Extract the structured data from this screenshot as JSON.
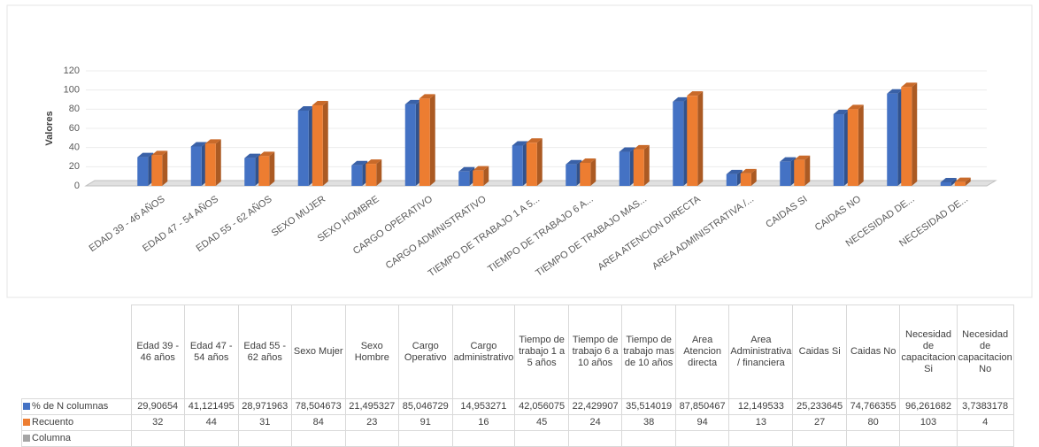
{
  "chart_data": {
    "type": "bar3d",
    "y_label": "Valores",
    "categories": [
      "EDAD 39 - 46 AÑOS",
      "EDAD 47 - 54 AÑOS",
      "EDAD 55 - 62 AÑOS",
      "SEXO MUJER",
      "SEXO HOMBRE",
      "CARGO OPERATIVO",
      "CARGO ADMINISTRATIVO",
      "TIEMPO DE TRABAJO 1 A 5...",
      "TIEMPO DE TRABAJO 6 A...",
      "TIEMPO DE TRABAJO MAS...",
      "AREA ATENCION DIRECTA",
      "AREA ADMINISTRATIVA /...",
      "CAIDAS SI",
      "CAIDAS NO",
      "NECESIDAD DE...",
      "NECESIDAD DE..."
    ],
    "table_headers": [
      "Edad 39 - 46 años",
      "Edad 47 - 54 años",
      "Edad 55 - 62 años",
      "Sexo Mujer",
      "Sexo Hombre",
      "Cargo Operativo",
      "Cargo administrativo",
      "Tiempo de trabajo 1 a 5 años",
      "Tiempo de trabajo 6 a 10 años",
      "Tiempo de trabajo mas de 10 años",
      "Area Atencion directa",
      "Area Administrativa / financiera",
      "Caidas Si",
      "Caidas No",
      "Necesidad de capacitacion Si",
      "Necesidad de capacitacion No"
    ],
    "series": [
      {
        "name": "% de N columnas",
        "color": "#4472c4",
        "values": [
          29.90654,
          41.121495,
          28.971963,
          78.504673,
          21.495327,
          85.046729,
          14.953271,
          42.056075,
          22.429907,
          35.514019,
          87.850467,
          12.149533,
          25.233645,
          74.766355,
          96.261682,
          3.7383178
        ],
        "value_labels": [
          "29,90654",
          "41,121495",
          "28,971963",
          "78,504673",
          "21,495327",
          "85,046729",
          "14,953271",
          "42,056075",
          "22,429907",
          "35,514019",
          "87,850467",
          "12,149533",
          "25,233645",
          "74,766355",
          "96,261682",
          "3,7383178"
        ]
      },
      {
        "name": "Recuento",
        "color": "#ed7d31",
        "values": [
          32,
          44,
          31,
          84,
          23,
          91,
          16,
          45,
          24,
          38,
          94,
          13,
          27,
          80,
          103,
          4
        ]
      },
      {
        "name": "Columna",
        "color": "#a5a5a5",
        "values": [
          null,
          null,
          null,
          null,
          null,
          null,
          null,
          null,
          null,
          null,
          null,
          null,
          null,
          null,
          null,
          null
        ]
      }
    ],
    "ylim": [
      0,
      120
    ],
    "yticks": [
      0,
      20,
      40,
      60,
      80,
      100,
      120
    ]
  }
}
